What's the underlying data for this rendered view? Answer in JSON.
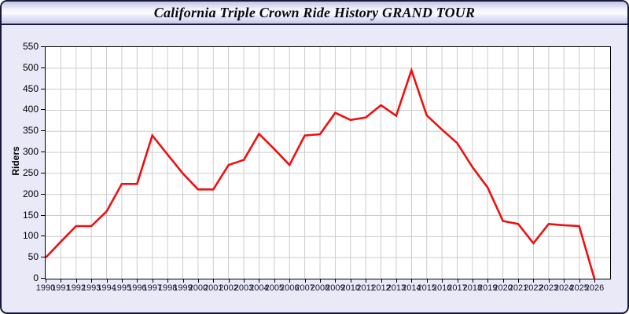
{
  "window": {
    "title": "California Triple Crown Ride History GRAND TOUR"
  },
  "colors": {
    "line": "#ee1010",
    "grid": "#cccccc",
    "axis": "#000000",
    "panel_background": "#e9e9f8"
  },
  "chart_data": {
    "type": "line",
    "title": "California Triple Crown Ride History GRAND TOUR",
    "xlabel": "",
    "ylabel": "Riders",
    "ylim": [
      0,
      550
    ],
    "yticks": [
      0,
      50,
      100,
      150,
      200,
      250,
      300,
      350,
      400,
      450,
      500,
      550
    ],
    "grid": true,
    "legend": false,
    "x": [
      1990,
      1991,
      1992,
      1993,
      1994,
      1995,
      1996,
      1997,
      1998,
      1999,
      2000,
      2001,
      2002,
      2003,
      2004,
      2005,
      2006,
      2007,
      2008,
      2009,
      2010,
      2011,
      2012,
      2013,
      2014,
      2015,
      2016,
      2017,
      2018,
      2019,
      2020,
      2021,
      2022,
      2023,
      2024,
      2025,
      2026
    ],
    "series": [
      {
        "name": "Riders",
        "color": "#ee1010",
        "values": [
          50,
          88,
          125,
          125,
          160,
          225,
          225,
          340,
          295,
          250,
          212,
          212,
          270,
          282,
          344,
          308,
          270,
          340,
          343,
          394,
          377,
          383,
          412,
          387,
          495,
          388,
          354,
          322,
          265,
          216,
          137,
          130,
          84,
          130,
          127,
          125,
          0
        ]
      }
    ]
  }
}
